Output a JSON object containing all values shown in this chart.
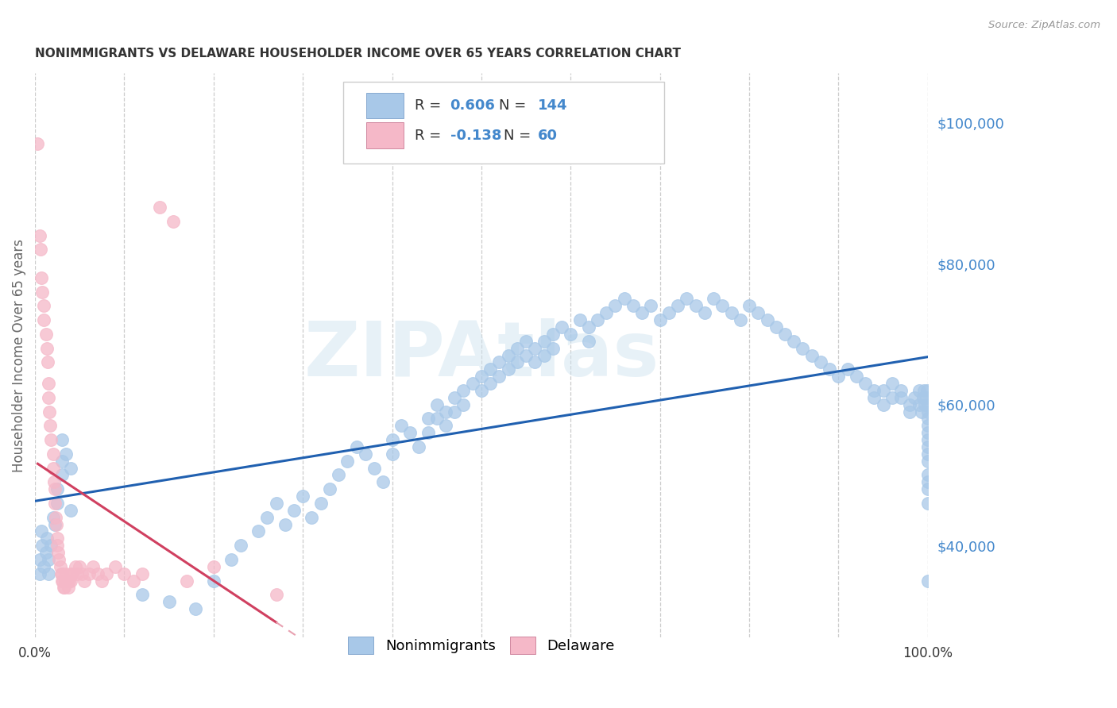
{
  "title": "NONIMMIGRANTS VS DELAWARE HOUSEHOLDER INCOME OVER 65 YEARS CORRELATION CHART",
  "source": "Source: ZipAtlas.com",
  "ylabel": "Householder Income Over 65 years",
  "watermark": "ZIPAtlas",
  "right_ytick_labels": [
    "$40,000",
    "$60,000",
    "$80,000",
    "$100,000"
  ],
  "right_ytick_values": [
    40000,
    60000,
    80000,
    100000
  ],
  "xlim": [
    0.0,
    1.0
  ],
  "ylim": [
    27000,
    107000
  ],
  "blue_R": 0.606,
  "blue_N": 144,
  "pink_R": -0.138,
  "pink_N": 60,
  "blue_color": "#a8c8e8",
  "pink_color": "#f5b8c8",
  "blue_line_color": "#2060b0",
  "pink_line_color": "#d04060",
  "pink_dashed_color": "#e8a0b0",
  "bg_color": "#ffffff",
  "grid_color": "#cccccc",
  "title_color": "#333333",
  "axis_label_color": "#666666",
  "right_label_color": "#4488cc",
  "blue_scatter_x": [
    0.005,
    0.005,
    0.007,
    0.008,
    0.01,
    0.012,
    0.013,
    0.015,
    0.015,
    0.018,
    0.02,
    0.022,
    0.025,
    0.025,
    0.03,
    0.03,
    0.03,
    0.035,
    0.04,
    0.04,
    0.12,
    0.15,
    0.18,
    0.2,
    0.22,
    0.23,
    0.25,
    0.26,
    0.27,
    0.28,
    0.29,
    0.3,
    0.31,
    0.32,
    0.33,
    0.34,
    0.35,
    0.36,
    0.37,
    0.38,
    0.39,
    0.4,
    0.4,
    0.41,
    0.42,
    0.43,
    0.44,
    0.44,
    0.45,
    0.45,
    0.46,
    0.46,
    0.47,
    0.47,
    0.48,
    0.48,
    0.49,
    0.5,
    0.5,
    0.51,
    0.51,
    0.52,
    0.52,
    0.53,
    0.53,
    0.54,
    0.54,
    0.55,
    0.55,
    0.56,
    0.56,
    0.57,
    0.57,
    0.58,
    0.58,
    0.59,
    0.6,
    0.61,
    0.62,
    0.62,
    0.63,
    0.64,
    0.65,
    0.66,
    0.67,
    0.68,
    0.69,
    0.7,
    0.71,
    0.72,
    0.73,
    0.74,
    0.75,
    0.76,
    0.77,
    0.78,
    0.79,
    0.8,
    0.81,
    0.82,
    0.83,
    0.84,
    0.85,
    0.86,
    0.87,
    0.88,
    0.89,
    0.9,
    0.91,
    0.92,
    0.93,
    0.94,
    0.94,
    0.95,
    0.95,
    0.96,
    0.96,
    0.97,
    0.97,
    0.98,
    0.98,
    0.985,
    0.99,
    0.99,
    0.993,
    0.995,
    0.996,
    0.997,
    0.998,
    0.999,
    1.0,
    1.0,
    1.0,
    1.0,
    1.0,
    1.0,
    1.0,
    1.0,
    1.0,
    1.0,
    1.0,
    1.0,
    1.0,
    1.0
  ],
  "blue_scatter_y": [
    38000,
    36000,
    42000,
    40000,
    37000,
    39000,
    41000,
    36000,
    38000,
    40000,
    44000,
    43000,
    46000,
    48000,
    50000,
    52000,
    55000,
    53000,
    51000,
    45000,
    33000,
    32000,
    31000,
    35000,
    38000,
    40000,
    42000,
    44000,
    46000,
    43000,
    45000,
    47000,
    44000,
    46000,
    48000,
    50000,
    52000,
    54000,
    53000,
    51000,
    49000,
    53000,
    55000,
    57000,
    56000,
    54000,
    58000,
    56000,
    60000,
    58000,
    59000,
    57000,
    61000,
    59000,
    62000,
    60000,
    63000,
    64000,
    62000,
    65000,
    63000,
    66000,
    64000,
    67000,
    65000,
    68000,
    66000,
    69000,
    67000,
    68000,
    66000,
    69000,
    67000,
    70000,
    68000,
    71000,
    70000,
    72000,
    71000,
    69000,
    72000,
    73000,
    74000,
    75000,
    74000,
    73000,
    74000,
    72000,
    73000,
    74000,
    75000,
    74000,
    73000,
    75000,
    74000,
    73000,
    72000,
    74000,
    73000,
    72000,
    71000,
    70000,
    69000,
    68000,
    67000,
    66000,
    65000,
    64000,
    65000,
    64000,
    63000,
    62000,
    61000,
    60000,
    62000,
    61000,
    63000,
    62000,
    61000,
    60000,
    59000,
    61000,
    60000,
    62000,
    59000,
    61000,
    62000,
    60000,
    61000,
    62000,
    60000,
    59000,
    58000,
    57000,
    56000,
    55000,
    54000,
    53000,
    52000,
    50000,
    49000,
    48000,
    46000,
    35000
  ],
  "pink_scatter_x": [
    0.003,
    0.005,
    0.006,
    0.007,
    0.008,
    0.01,
    0.01,
    0.012,
    0.013,
    0.014,
    0.015,
    0.015,
    0.016,
    0.017,
    0.018,
    0.02,
    0.02,
    0.021,
    0.022,
    0.022,
    0.023,
    0.024,
    0.025,
    0.025,
    0.026,
    0.027,
    0.028,
    0.029,
    0.03,
    0.03,
    0.031,
    0.032,
    0.033,
    0.034,
    0.035,
    0.036,
    0.037,
    0.038,
    0.04,
    0.04,
    0.042,
    0.045,
    0.047,
    0.05,
    0.052,
    0.055,
    0.06,
    0.065,
    0.07,
    0.075,
    0.08,
    0.09,
    0.1,
    0.11,
    0.12,
    0.14,
    0.155,
    0.17,
    0.2,
    0.27
  ],
  "pink_scatter_y": [
    97000,
    84000,
    82000,
    78000,
    76000,
    74000,
    72000,
    70000,
    68000,
    66000,
    63000,
    61000,
    59000,
    57000,
    55000,
    53000,
    51000,
    49000,
    48000,
    46000,
    44000,
    43000,
    41000,
    40000,
    39000,
    38000,
    37000,
    36000,
    36000,
    35000,
    35000,
    34000,
    34000,
    35000,
    36000,
    35000,
    34000,
    35000,
    36000,
    35000,
    36000,
    37000,
    36000,
    37000,
    36000,
    35000,
    36000,
    37000,
    36000,
    35000,
    36000,
    37000,
    36000,
    35000,
    36000,
    88000,
    86000,
    35000,
    37000,
    33000
  ]
}
